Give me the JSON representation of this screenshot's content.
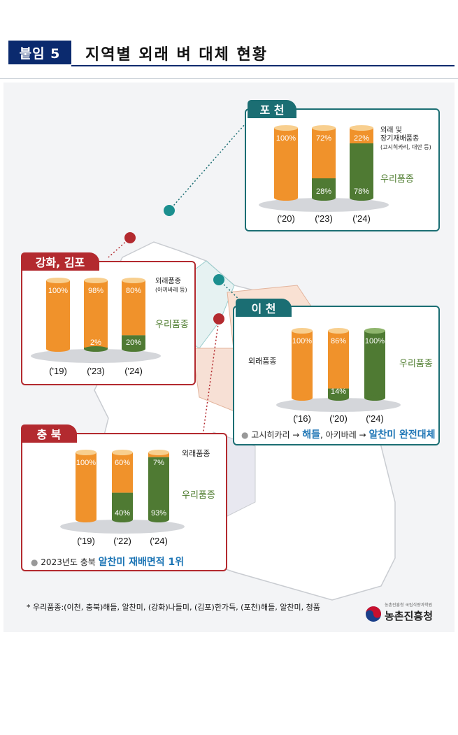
{
  "header": {
    "badge": "붙임 5",
    "title": "지역별 외래 벼 대체 현황"
  },
  "colors": {
    "foreign": "#f0922b",
    "domestic": "#4f7a33",
    "tab_red": "#b32a2f",
    "tab_teal": "#1b6e73",
    "brand_navy": "#0b2a6e",
    "highlight_blue": "#1d75b5"
  },
  "regions": {
    "pocheon": {
      "name": "포 천",
      "label_foreign": "외래 및\n장기재배품종",
      "label_foreign_sub": "(고시히카리, 대안 등)",
      "label_domestic": "우리품종"
    },
    "ganghwa": {
      "name": "강화, 김포",
      "label_foreign": "외래품종",
      "label_foreign_sub": "(아끼바레 등)",
      "label_domestic": "우리품종"
    },
    "icheon": {
      "name": "이 천",
      "label_foreign": "외래품종",
      "label_domestic": "우리품종",
      "note_prefix": "고시히카리 → ",
      "note_a": "해들",
      "note_mid": ", 아키바레 → ",
      "note_b": "알찬미 완전대체"
    },
    "chungbuk": {
      "name": "충 북",
      "label_foreign": "외래품종",
      "label_domestic": "우리품종",
      "note_prefix": "2023년도 충북 ",
      "note_hl": "알찬미 재배면적 1위"
    }
  },
  "chart_data": [
    {
      "type": "bar",
      "title": "포 천",
      "categories": [
        "('20)",
        "('23)",
        "('24)"
      ],
      "series": [
        {
          "name": "외래 및 장기재배품종",
          "values": [
            100,
            72,
            22
          ]
        },
        {
          "name": "우리품종",
          "values": [
            0,
            28,
            78
          ]
        }
      ],
      "ylim": [
        0,
        100
      ]
    },
    {
      "type": "bar",
      "title": "강화, 김포",
      "categories": [
        "('19)",
        "('23)",
        "('24)"
      ],
      "series": [
        {
          "name": "외래품종",
          "values": [
            100,
            98,
            80
          ]
        },
        {
          "name": "우리품종",
          "values": [
            0,
            2,
            20
          ]
        }
      ],
      "ylim": [
        0,
        100
      ]
    },
    {
      "type": "bar",
      "title": "이 천",
      "categories": [
        "('16)",
        "('20)",
        "('24)"
      ],
      "series": [
        {
          "name": "외래품종",
          "values": [
            100,
            86,
            0
          ]
        },
        {
          "name": "우리품종",
          "values": [
            0,
            14,
            100
          ]
        }
      ],
      "ylim": [
        0,
        100
      ]
    },
    {
      "type": "bar",
      "title": "충 북",
      "categories": [
        "('19)",
        "('22)",
        "('24)"
      ],
      "series": [
        {
          "name": "외래품종",
          "values": [
            100,
            60,
            7
          ]
        },
        {
          "name": "우리품종",
          "values": [
            0,
            40,
            93
          ]
        }
      ],
      "ylim": [
        0,
        100
      ]
    }
  ],
  "footnote": "* 우리품종:(이천, 충북)해들, 알찬미, (강화)나들미, (김포)한가득, (포천)해들, 알찬미, 청품",
  "ministry": {
    "name": "농촌진흥청",
    "sub": "농촌진흥청 국립식량과학원"
  }
}
